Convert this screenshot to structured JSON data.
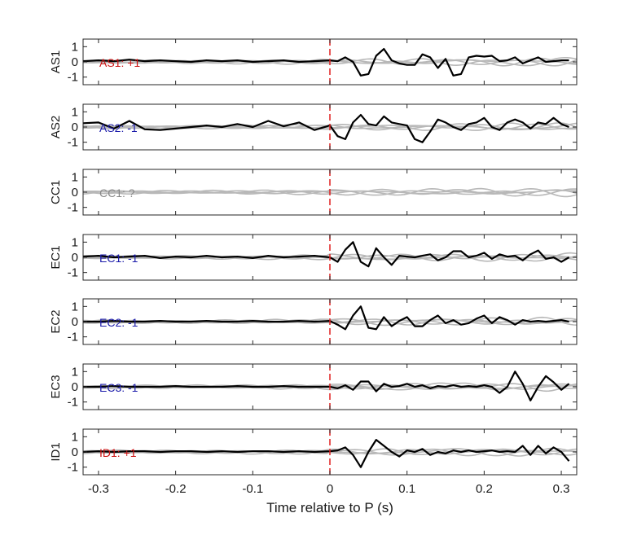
{
  "chart_data": {
    "type": "line",
    "xlabel": "Time relative to P (s)",
    "xlim": [
      -0.32,
      0.32
    ],
    "ylim": [
      -1.5,
      1.5
    ],
    "x_ticks": [
      -0.3,
      -0.2,
      -0.1,
      0,
      0.1,
      0.2,
      0.3
    ],
    "x_tick_labels": [
      "-0.3",
      "-0.2",
      "-0.1",
      "0",
      "0.1",
      "0.2",
      "0.3"
    ],
    "y_ticks": [
      1,
      0,
      -1
    ],
    "y_tick_labels": [
      "1",
      "0",
      "-1"
    ],
    "marker_line": {
      "x": 0,
      "color": "#e02020",
      "style": "dashed"
    },
    "colors": {
      "positive": "#cc1111",
      "negative": "#1a1aaa",
      "unknown": "#888888",
      "trace": "#000000",
      "background_traces": "#b8b8b8"
    },
    "panels": [
      {
        "ylabel": "AS1",
        "label": "AS1: +1",
        "label_color": "#cc1111",
        "x": [
          -0.32,
          -0.3,
          -0.28,
          -0.26,
          -0.24,
          -0.22,
          -0.2,
          -0.18,
          -0.16,
          -0.14,
          -0.12,
          -0.1,
          -0.08,
          -0.06,
          -0.04,
          -0.02,
          0,
          0.01,
          0.02,
          0.03,
          0.04,
          0.05,
          0.06,
          0.07,
          0.08,
          0.09,
          0.1,
          0.11,
          0.12,
          0.13,
          0.14,
          0.15,
          0.16,
          0.17,
          0.18,
          0.19,
          0.2,
          0.21,
          0.22,
          0.23,
          0.24,
          0.25,
          0.26,
          0.27,
          0.28,
          0.29,
          0.3,
          0.31
        ],
        "y": [
          0.05,
          0.1,
          0.05,
          0.15,
          0.05,
          0.1,
          0.05,
          0.0,
          0.1,
          0.05,
          0.1,
          0.0,
          0.05,
          0.1,
          0.0,
          0.05,
          0.1,
          0.05,
          0.3,
          0.0,
          -0.9,
          -0.8,
          0.4,
          0.85,
          0.1,
          -0.1,
          -0.2,
          -0.2,
          0.5,
          0.3,
          -0.4,
          0.2,
          -0.9,
          -0.8,
          0.3,
          0.4,
          0.35,
          0.4,
          0.05,
          0.1,
          0.3,
          -0.1,
          0.1,
          0.3,
          0.0,
          0.05,
          0.1,
          0.1
        ]
      },
      {
        "ylabel": "AS2",
        "label": "AS2: -1",
        "label_color": "#1a1aaa",
        "x": [
          -0.32,
          -0.3,
          -0.28,
          -0.26,
          -0.24,
          -0.22,
          -0.2,
          -0.18,
          -0.16,
          -0.14,
          -0.12,
          -0.1,
          -0.08,
          -0.06,
          -0.04,
          -0.02,
          0,
          0.01,
          0.02,
          0.03,
          0.04,
          0.05,
          0.06,
          0.07,
          0.08,
          0.09,
          0.1,
          0.11,
          0.12,
          0.13,
          0.14,
          0.15,
          0.16,
          0.17,
          0.18,
          0.19,
          0.2,
          0.21,
          0.22,
          0.23,
          0.24,
          0.25,
          0.26,
          0.27,
          0.28,
          0.29,
          0.3,
          0.31
        ],
        "y": [
          0.25,
          0.3,
          -0.1,
          0.4,
          -0.15,
          -0.2,
          -0.1,
          0.0,
          0.1,
          0.0,
          0.2,
          0.0,
          0.4,
          0.05,
          0.3,
          -0.2,
          0.1,
          -0.6,
          -0.8,
          0.3,
          0.8,
          0.2,
          0.1,
          0.7,
          0.3,
          0.2,
          0.1,
          -0.8,
          -1.0,
          -0.3,
          0.5,
          0.3,
          0.0,
          -0.2,
          0.2,
          0.3,
          0.6,
          0.0,
          -0.2,
          0.3,
          0.5,
          0.3,
          -0.1,
          0.3,
          0.2,
          0.6,
          0.2,
          0.0
        ]
      },
      {
        "ylabel": "CC1",
        "label": "CC1: ?",
        "label_color": "#888888",
        "x": [],
        "y": []
      },
      {
        "ylabel": "EC1",
        "label": "EC1: -1",
        "label_color": "#1a1aaa",
        "x": [
          -0.32,
          -0.3,
          -0.28,
          -0.26,
          -0.24,
          -0.22,
          -0.2,
          -0.18,
          -0.16,
          -0.14,
          -0.12,
          -0.1,
          -0.08,
          -0.06,
          -0.04,
          -0.02,
          0,
          0.01,
          0.02,
          0.03,
          0.04,
          0.05,
          0.06,
          0.07,
          0.08,
          0.09,
          0.1,
          0.11,
          0.12,
          0.13,
          0.14,
          0.15,
          0.16,
          0.17,
          0.18,
          0.19,
          0.2,
          0.21,
          0.22,
          0.23,
          0.24,
          0.25,
          0.26,
          0.27,
          0.28,
          0.29,
          0.3,
          0.31
        ],
        "y": [
          0.05,
          0.1,
          0.0,
          0.05,
          0.1,
          -0.05,
          0.05,
          0.0,
          0.1,
          0.0,
          0.05,
          -0.05,
          0.1,
          0.0,
          0.05,
          0.1,
          0.0,
          -0.3,
          0.5,
          1.0,
          -0.3,
          -0.6,
          0.6,
          0.0,
          -0.5,
          0.1,
          0.05,
          0.0,
          0.1,
          0.2,
          -0.2,
          0.0,
          0.4,
          0.4,
          0.0,
          0.1,
          0.3,
          -0.1,
          0.2,
          0.05,
          0.1,
          -0.2,
          0.2,
          0.45,
          -0.1,
          0.0,
          -0.3,
          0.0
        ]
      },
      {
        "ylabel": "EC2",
        "label": "EC2: -1",
        "label_color": "#1a1aaa",
        "x": [
          -0.32,
          -0.3,
          -0.28,
          -0.26,
          -0.24,
          -0.22,
          -0.2,
          -0.18,
          -0.16,
          -0.14,
          -0.12,
          -0.1,
          -0.08,
          -0.06,
          -0.04,
          -0.02,
          0,
          0.01,
          0.02,
          0.03,
          0.04,
          0.05,
          0.06,
          0.07,
          0.08,
          0.09,
          0.1,
          0.11,
          0.12,
          0.13,
          0.14,
          0.15,
          0.16,
          0.17,
          0.18,
          0.19,
          0.2,
          0.21,
          0.22,
          0.23,
          0.24,
          0.25,
          0.26,
          0.27,
          0.28,
          0.29,
          0.3,
          0.31
        ],
        "y": [
          0.0,
          0.0,
          0.05,
          0.0,
          0.0,
          0.05,
          0.0,
          0.0,
          0.05,
          0.0,
          0.0,
          0.05,
          0.0,
          0.0,
          0.05,
          0.0,
          0.05,
          -0.2,
          -0.5,
          0.4,
          1.0,
          -0.4,
          -0.5,
          0.3,
          -0.3,
          0.05,
          0.3,
          -0.3,
          -0.3,
          0.1,
          0.4,
          -0.1,
          0.1,
          -0.2,
          -0.1,
          0.2,
          0.4,
          -0.1,
          0.3,
          0.1,
          -0.2,
          0.1,
          0.0,
          0.05,
          0.0,
          0.05,
          0.1,
          0.0
        ]
      },
      {
        "ylabel": "EC3",
        "label": "EC3: -1",
        "label_color": "#1a1aaa",
        "x": [
          -0.32,
          -0.3,
          -0.28,
          -0.26,
          -0.24,
          -0.22,
          -0.2,
          -0.18,
          -0.16,
          -0.14,
          -0.12,
          -0.1,
          -0.08,
          -0.06,
          -0.04,
          -0.02,
          0,
          0.01,
          0.02,
          0.03,
          0.04,
          0.05,
          0.06,
          0.07,
          0.08,
          0.09,
          0.1,
          0.11,
          0.12,
          0.13,
          0.14,
          0.15,
          0.16,
          0.17,
          0.18,
          0.19,
          0.2,
          0.21,
          0.22,
          0.23,
          0.24,
          0.25,
          0.26,
          0.27,
          0.28,
          0.29,
          0.3,
          0.31
        ],
        "y": [
          0.0,
          0.0,
          0.05,
          0.0,
          0.0,
          0.0,
          0.05,
          0.0,
          0.0,
          0.0,
          0.05,
          0.0,
          0.0,
          0.05,
          0.0,
          0.0,
          0.0,
          -0.1,
          0.1,
          -0.2,
          0.35,
          0.35,
          -0.3,
          0.2,
          0.0,
          0.05,
          0.2,
          0.0,
          0.1,
          -0.1,
          0.05,
          0.0,
          0.1,
          0.0,
          0.05,
          0.0,
          0.1,
          0.0,
          -0.4,
          0.0,
          1.0,
          0.2,
          -0.9,
          0.0,
          0.7,
          0.3,
          -0.2,
          0.2
        ]
      },
      {
        "ylabel": "ID1",
        "label": "ID1: +1",
        "label_color": "#cc1111",
        "x": [
          -0.32,
          -0.3,
          -0.28,
          -0.26,
          -0.24,
          -0.22,
          -0.2,
          -0.18,
          -0.16,
          -0.14,
          -0.12,
          -0.1,
          -0.08,
          -0.06,
          -0.04,
          -0.02,
          0,
          0.01,
          0.02,
          0.03,
          0.04,
          0.05,
          0.06,
          0.07,
          0.08,
          0.09,
          0.1,
          0.11,
          0.12,
          0.13,
          0.14,
          0.15,
          0.16,
          0.17,
          0.18,
          0.19,
          0.2,
          0.21,
          0.22,
          0.23,
          0.24,
          0.25,
          0.26,
          0.27,
          0.28,
          0.29,
          0.3,
          0.31
        ],
        "y": [
          0.0,
          0.05,
          0.0,
          0.05,
          0.05,
          0.0,
          0.05,
          0.05,
          0.0,
          0.05,
          0.0,
          0.05,
          0.05,
          0.0,
          0.05,
          0.0,
          0.05,
          0.1,
          0.3,
          -0.2,
          -1.0,
          0.0,
          0.8,
          0.4,
          0.0,
          -0.3,
          0.1,
          0.0,
          0.2,
          -0.2,
          0.0,
          -0.1,
          0.1,
          0.0,
          0.1,
          0.0,
          0.05,
          0.1,
          0.0,
          0.05,
          0.0,
          0.4,
          -0.2,
          0.4,
          -0.1,
          0.3,
          0.0,
          -0.6
        ]
      }
    ]
  }
}
